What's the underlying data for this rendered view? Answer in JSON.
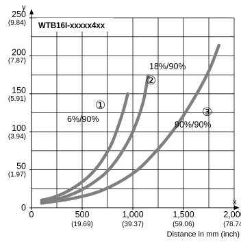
{
  "chart_data": {
    "type": "line",
    "model_label": "WTB16I-xxxxx4xx",
    "y_axis_letter": "y",
    "x_axis_letter": "x",
    "xlabel": "Distance in mm (inch)",
    "xlim": [
      0,
      2000
    ],
    "ylim": [
      0,
      250
    ],
    "grid": true,
    "x_ticks": [
      {
        "value": 0,
        "label": "0",
        "sub": ""
      },
      {
        "value": 500,
        "label": "500",
        "sub": "(19.69)"
      },
      {
        "value": 1000,
        "label": "1,000",
        "sub": "(39.37)"
      },
      {
        "value": 1500,
        "label": "1,500",
        "sub": "(59.06)"
      },
      {
        "value": 2000,
        "label": "2,000",
        "sub": "(78.74)"
      }
    ],
    "y_ticks": [
      {
        "value": 0,
        "label": "0",
        "sub": ""
      },
      {
        "value": 50,
        "label": "50",
        "sub": "(1.97)"
      },
      {
        "value": 100,
        "label": "100",
        "sub": "(3.94)"
      },
      {
        "value": 150,
        "label": "150",
        "sub": "(5.91)"
      },
      {
        "value": 200,
        "label": "200",
        "sub": "(7.87)"
      },
      {
        "value": 250,
        "label": "250",
        "sub": "(9.84)"
      }
    ],
    "series": [
      {
        "marker": "①",
        "label": "6%/90%",
        "color": "#7f7f7f",
        "points": [
          [
            100,
            10
          ],
          [
            200,
            13
          ],
          [
            300,
            18
          ],
          [
            400,
            25
          ],
          [
            500,
            34
          ],
          [
            600,
            46
          ],
          [
            700,
            63
          ],
          [
            800,
            87
          ],
          [
            900,
            125
          ],
          [
            950,
            150
          ]
        ]
      },
      {
        "marker": "②",
        "label": "18%/90%",
        "color": "#7f7f7f",
        "points": [
          [
            100,
            8
          ],
          [
            300,
            13
          ],
          [
            500,
            24
          ],
          [
            700,
            42
          ],
          [
            800,
            56
          ],
          [
            900,
            75
          ],
          [
            1000,
            100
          ],
          [
            1100,
            138
          ],
          [
            1150,
            174
          ]
        ]
      },
      {
        "marker": "③",
        "label": "90%/90%",
        "color": "#7f7f7f",
        "points": [
          [
            100,
            6
          ],
          [
            400,
            12
          ],
          [
            700,
            23
          ],
          [
            1000,
            45
          ],
          [
            1200,
            70
          ],
          [
            1400,
            102
          ],
          [
            1600,
            143
          ],
          [
            1750,
            180
          ],
          [
            1850,
            214
          ]
        ]
      }
    ]
  }
}
